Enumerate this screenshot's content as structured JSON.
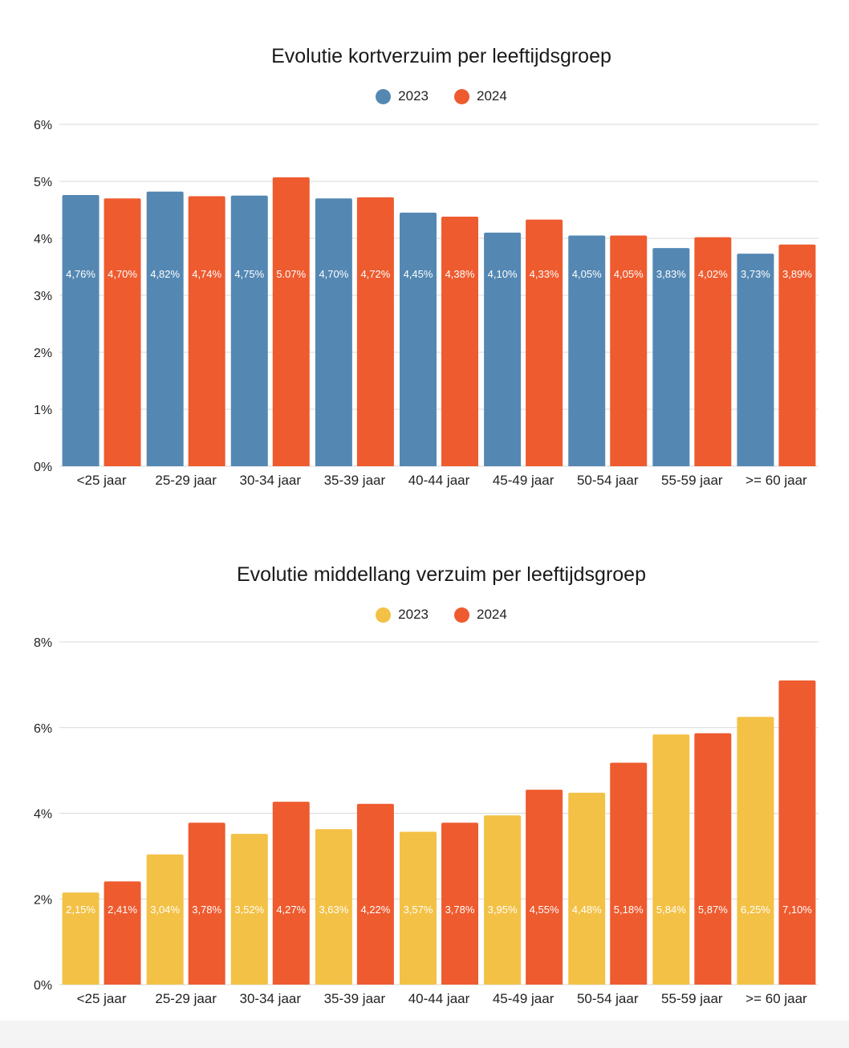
{
  "colors": {
    "blue": "#5488B3",
    "orange": "#EE5B2F",
    "yellow": "#F3C145",
    "grid": "#d9d9d9",
    "axis_text": "#222222"
  },
  "chart_data": [
    {
      "type": "bar",
      "title": "Evolutie kortverzuim per leeftijdsgroep",
      "categories": [
        "<25 jaar",
        "25-29 jaar",
        "30-34 jaar",
        "35-39 jaar",
        "40-44 jaar",
        "45-49 jaar",
        "50-54 jaar",
        "55-59 jaar",
        ">= 60 jaar"
      ],
      "series": [
        {
          "name": "2023",
          "color": "#5488B3",
          "values": [
            4.76,
            4.82,
            4.75,
            4.7,
            4.45,
            4.1,
            4.05,
            3.83,
            3.73
          ],
          "labels": [
            "4,76%",
            "4,82%",
            "4,75%",
            "4,70%",
            "4,45%",
            "4,10%",
            "4,05%",
            "3,83%",
            "3,73%"
          ]
        },
        {
          "name": "2024",
          "color": "#EE5B2F",
          "values": [
            4.7,
            4.74,
            5.07,
            4.72,
            4.38,
            4.33,
            4.05,
            4.02,
            3.89
          ],
          "labels": [
            "4,70%",
            "4,74%",
            "5.07%",
            "4,72%",
            "4,38%",
            "4,33%",
            "4,05%",
            "4,02%",
            "3,89%"
          ]
        }
      ],
      "ylim": [
        0,
        6
      ],
      "yticks": [
        0,
        1,
        2,
        3,
        4,
        5,
        6
      ],
      "ytick_labels": [
        "0%",
        "1%",
        "2%",
        "3%",
        "4%",
        "5%",
        "6%"
      ],
      "xlabel": "",
      "ylabel": "",
      "grid": true,
      "legend": "top-center"
    },
    {
      "type": "bar",
      "title": "Evolutie middellang verzuim per leeftijdsgroep",
      "categories": [
        "<25 jaar",
        "25-29 jaar",
        "30-34 jaar",
        "35-39 jaar",
        "40-44 jaar",
        "45-49 jaar",
        "50-54 jaar",
        "55-59 jaar",
        ">= 60 jaar"
      ],
      "series": [
        {
          "name": "2023",
          "color": "#F3C145",
          "values": [
            2.15,
            3.04,
            3.52,
            3.63,
            3.57,
            3.95,
            4.48,
            5.84,
            6.25
          ],
          "labels": [
            "2,15%",
            "3,04%",
            "3,52%",
            "3,63%",
            "3,57%",
            "3,95%",
            "4,48%",
            "5,84%",
            "6,25%"
          ]
        },
        {
          "name": "2024",
          "color": "#EE5B2F",
          "values": [
            2.41,
            3.78,
            4.27,
            4.22,
            3.78,
            4.55,
            5.18,
            5.87,
            7.1
          ],
          "labels": [
            "2,41%",
            "3,78%",
            "4,27%",
            "4,22%",
            "3,78%",
            "4,55%",
            "5,18%",
            "5,87%",
            "7,10%"
          ]
        }
      ],
      "ylim": [
        0,
        8
      ],
      "yticks": [
        0,
        2,
        4,
        6,
        8
      ],
      "ytick_labels": [
        "0%",
        "2%",
        "4%",
        "6%",
        "8%"
      ],
      "xlabel": "",
      "ylabel": "",
      "grid": true,
      "legend": "top-center"
    }
  ]
}
